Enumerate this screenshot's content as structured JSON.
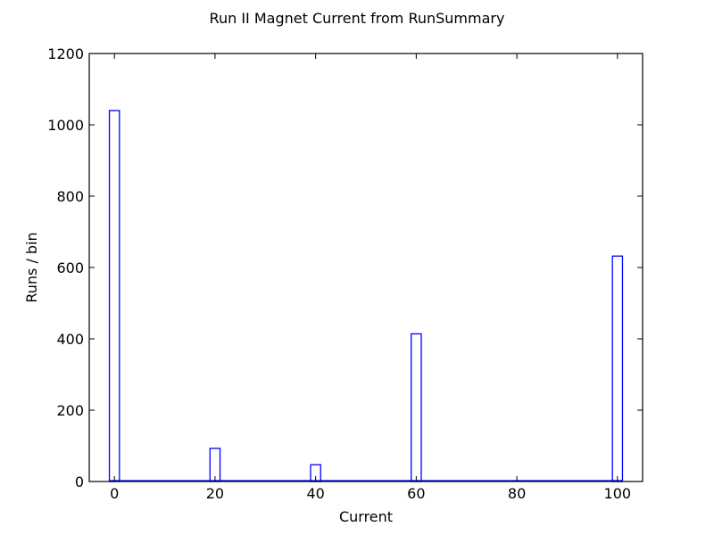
{
  "chart_data": {
    "type": "bar",
    "title": "Run II Magnet Current from RunSummary",
    "xlabel": "Current",
    "ylabel": "Runs / bin",
    "xlim": [
      -5,
      105
    ],
    "ylim": [
      0,
      1200
    ],
    "xticks": [
      0,
      20,
      40,
      60,
      80,
      100
    ],
    "yticks": [
      0,
      200,
      400,
      600,
      800,
      1000,
      1200
    ],
    "bin_width": 2,
    "grid": false,
    "legend": "none",
    "series": [
      {
        "style": "step-outline",
        "bins": [
          {
            "x": 0,
            "value": 1040
          },
          {
            "x": 20,
            "value": 93
          },
          {
            "x": 40,
            "value": 47
          },
          {
            "x": 60,
            "value": 414
          },
          {
            "x": 100,
            "value": 632
          }
        ]
      }
    ],
    "colors": {
      "bar_stroke": "#0000ff",
      "axis": "#000000"
    }
  }
}
